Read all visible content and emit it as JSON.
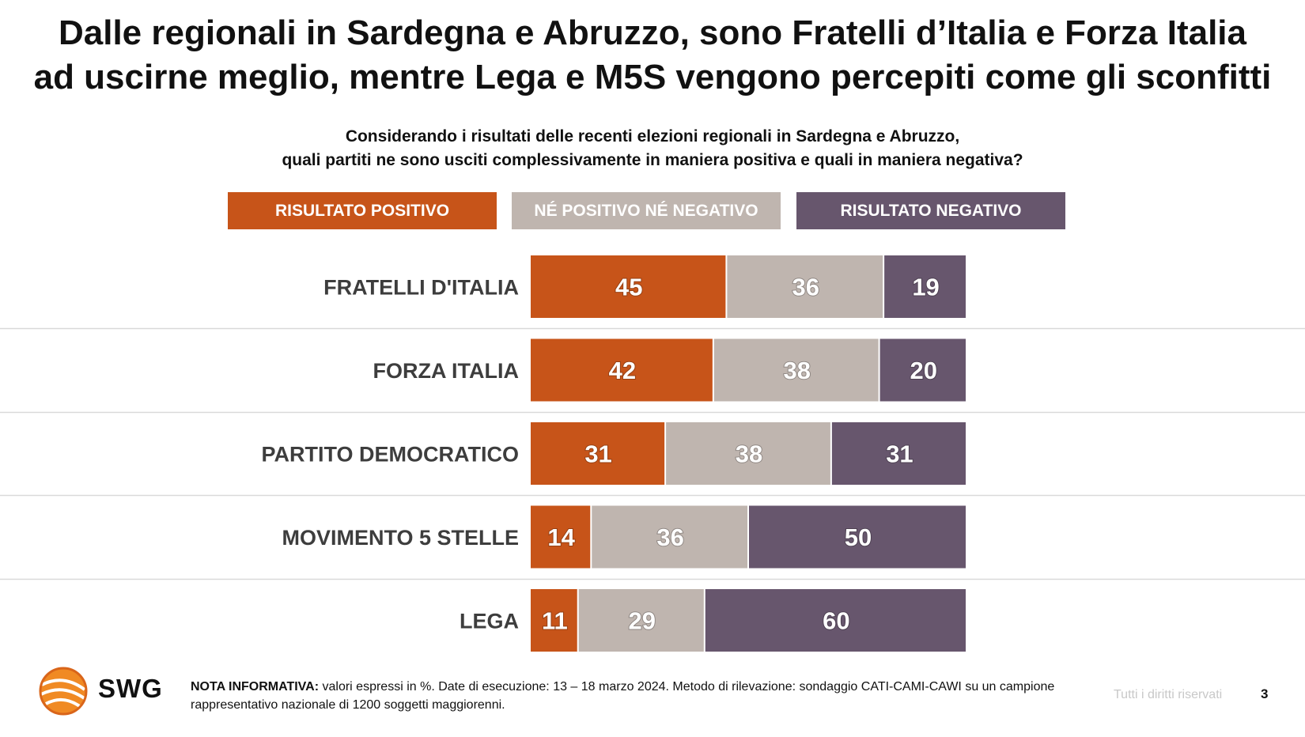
{
  "title": {
    "line1": "Dalle regionali in Sardegna e Abruzzo, sono Fratelli d’Italia e Forza Italia",
    "line2": "ad uscirne meglio, mentre Lega e M5S vengono percepiti come gli sconfitti"
  },
  "question": {
    "line1": "Considerando i risultati delle recenti elezioni regionali in Sardegna e Abruzzo,",
    "line2": "quali partiti ne sono usciti complessivamente in maniera positiva e quali in maniera negativa?"
  },
  "colors": {
    "positive": "#C75419",
    "neutral": "#BFB5AF",
    "negative": "#67566D",
    "divider": "#d9d9d9"
  },
  "chart_data": {
    "type": "bar",
    "orientation": "horizontal",
    "stacked": true,
    "unit": "%",
    "categories": [
      "FRATELLI D'ITALIA",
      "FORZA ITALIA",
      "PARTITO DEMOCRATICO",
      "MOVIMENTO 5 STELLE",
      "LEGA"
    ],
    "series": [
      {
        "name": "RISULTATO POSITIVO",
        "key": "positive",
        "values": [
          45,
          42,
          31,
          14,
          11
        ]
      },
      {
        "name": "NÉ POSITIVO NÉ NEGATIVO",
        "key": "neutral",
        "values": [
          36,
          38,
          38,
          36,
          29
        ]
      },
      {
        "name": "RISULTATO NEGATIVO",
        "key": "negative",
        "values": [
          19,
          20,
          31,
          50,
          60
        ]
      }
    ],
    "xlim": [
      0,
      100
    ],
    "legend": "top"
  },
  "footer": {
    "logo": "SWG",
    "note_label": "NOTA INFORMATIVA:",
    "note_text": " valori espressi in %. Date di esecuzione: 13 – 18 marzo 2024. Metodo di rilevazione: sondaggio CATI-CAMI-CAWI su un campione rappresentativo nazionale di 1200 soggetti maggiorenni.",
    "rights": "Tutti i diritti riservati",
    "page": "3"
  }
}
